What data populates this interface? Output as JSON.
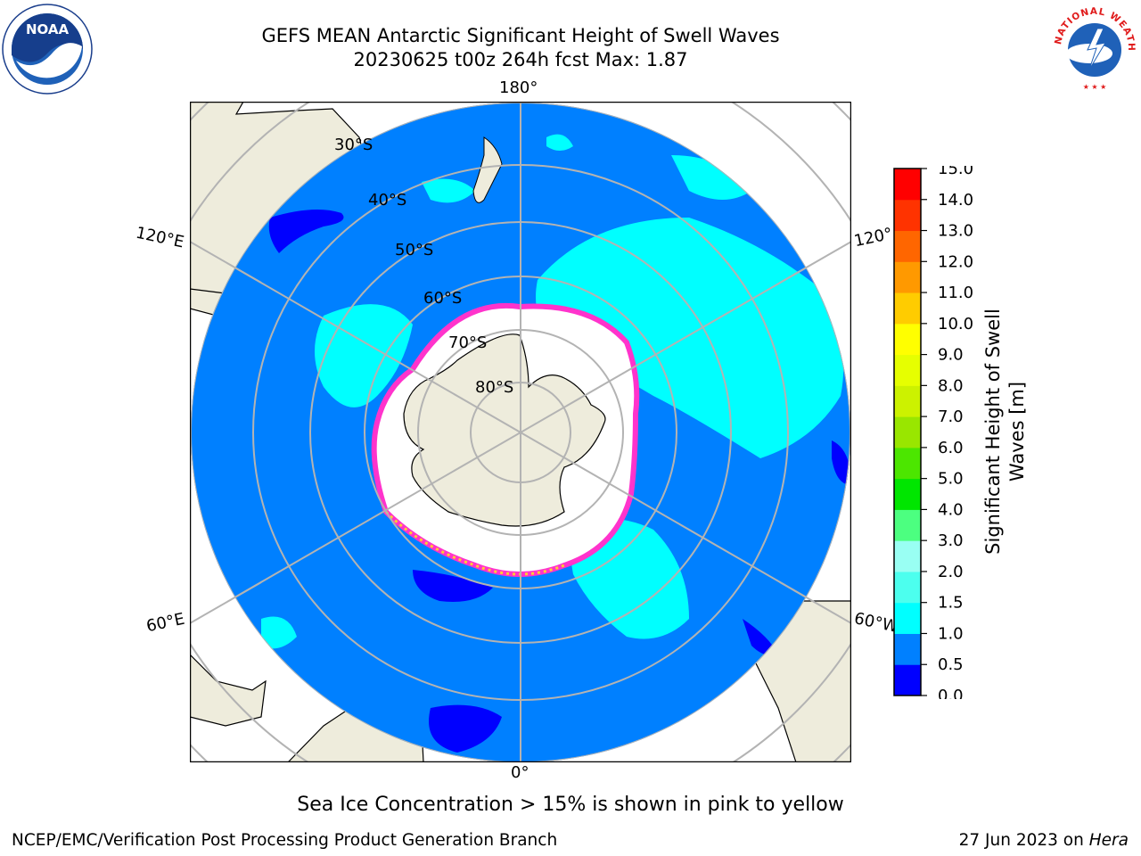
{
  "title": {
    "line1": "GEFS MEAN Antarctic Significant Height of Swell Waves",
    "line2": "20230625 t00z 264h fcst   Max: 1.87"
  },
  "map": {
    "projection": "south-polar-stereographic",
    "longitude_labels": {
      "top": "180°",
      "bottom": "0°",
      "upper_left": "120°E",
      "lower_left": "60°E",
      "upper_right": "120°",
      "lower_right": "60°W"
    },
    "latitude_labels": [
      "30°S",
      "40°S",
      "50°S",
      "60°S",
      "70°S",
      "80°S"
    ],
    "colors": {
      "ocean_low": "#0080ff",
      "ocean_mid": "#00ffff",
      "ocean_lowest": "#0000ff",
      "land": "#eeecdc",
      "ice": "#ffffff",
      "ice_edge": "#ff33cc",
      "graticule": "#b3b3b3"
    }
  },
  "colorbar": {
    "label": "Significant Height of Swell Waves [m]",
    "ticks": [
      "0.0",
      "0.5",
      "1.0",
      "1.5",
      "2.0",
      "3.0",
      "4.0",
      "5.0",
      "6.0",
      "7.0",
      "8.0",
      "9.0",
      "10.0",
      "11.0",
      "12.0",
      "13.0",
      "14.0",
      "15.0"
    ],
    "colors": [
      "#0000ff",
      "#0080ff",
      "#00ffff",
      "#4cffee",
      "#99fff3",
      "#4cff80",
      "#00e600",
      "#4ce600",
      "#99e600",
      "#ccf200",
      "#e6ff00",
      "#ffff00",
      "#ffcc00",
      "#ff9900",
      "#ff6600",
      "#ff3300",
      "#ff0000"
    ]
  },
  "caption": "Sea Ice Concentration > 15% is shown in pink to yellow",
  "footer": {
    "left": "NCEP/EMC/Verification Post Processing Product Generation Branch",
    "right_prefix": "27 Jun 2023 on ",
    "right_host": "Hera"
  },
  "logos": {
    "left": "NOAA",
    "right": "NATIONAL WEATHER SERVICE"
  }
}
